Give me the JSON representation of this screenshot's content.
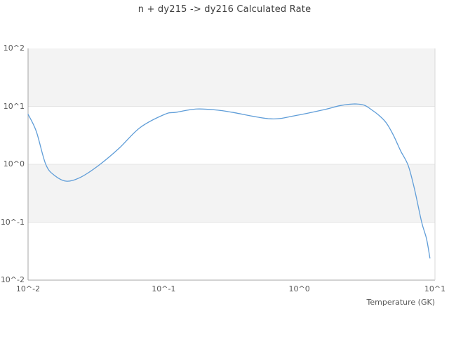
{
  "chart_data": {
    "type": "line",
    "title": "n + dy215 -> dy216 Calculated Rate",
    "xlabel": "Temperature (GK)",
    "ylabel": "",
    "xscale": "log",
    "yscale": "log",
    "xlim": [
      0.01,
      10
    ],
    "ylim": [
      0.01,
      100
    ],
    "xtick_labels": [
      "10^-2",
      "10^-1",
      "10^0",
      "10^1"
    ],
    "ytick_labels": [
      "10^2",
      "10^1",
      "10^0",
      "10^-1",
      "10^-2"
    ],
    "grid": "horizontal-decade-bands",
    "legend": "none",
    "series": [
      {
        "name": "calculated-rate",
        "color": "#5f9dd8",
        "x": [
          0.01,
          0.0115,
          0.0135,
          0.0157,
          0.0193,
          0.0245,
          0.0334,
          0.047,
          0.067,
          0.102,
          0.123,
          0.175,
          0.25,
          0.32,
          0.61,
          0.93,
          1.5,
          2.0,
          2.5,
          3.0,
          3.44,
          3.89,
          4.37,
          4.93,
          5.58,
          6.35,
          7.07,
          7.98,
          8.66,
          9.18
        ],
        "y": [
          7.3,
          3.7,
          1.0,
          0.64,
          0.51,
          0.6,
          0.97,
          1.9,
          4.3,
          7.3,
          7.9,
          9.0,
          8.6,
          7.9,
          6.1,
          6.9,
          8.7,
          10.3,
          11.0,
          10.5,
          8.6,
          6.9,
          5.2,
          3.2,
          1.71,
          0.95,
          0.37,
          0.1,
          0.052,
          0.024
        ]
      }
    ]
  },
  "colors": {
    "band": "#f3f3f3",
    "gridline": "#e4e4e4",
    "spine_dark": "#a5a5a5",
    "spine_light": "#d8d8d8",
    "title_text": "#3d3d3d",
    "tick_text": "#565656",
    "background": "#ffffff"
  }
}
